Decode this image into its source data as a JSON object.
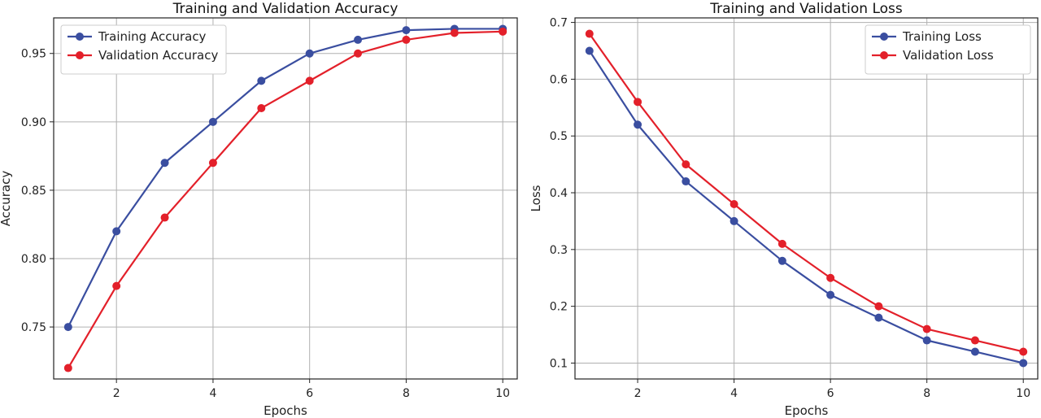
{
  "chart_data": [
    {
      "type": "line",
      "title": "Training and Validation Accuracy",
      "xlabel": "Epochs",
      "ylabel": "Accuracy",
      "x": [
        1,
        2,
        3,
        4,
        5,
        6,
        7,
        8,
        9,
        10
      ],
      "xlim": [
        0.7,
        10.3
      ],
      "ylim": [
        0.712,
        0.976
      ],
      "xticks": [
        2,
        4,
        6,
        8,
        10
      ],
      "yticks": [
        0.75,
        0.8,
        0.85,
        0.9,
        0.95
      ],
      "ytick_labels": [
        "0.75",
        "0.80",
        "0.85",
        "0.90",
        "0.95"
      ],
      "grid": true,
      "legend": "upper-left",
      "series": [
        {
          "name": "Training Accuracy",
          "color": "#3a4ea0",
          "values": [
            0.75,
            0.82,
            0.87,
            0.9,
            0.93,
            0.95,
            0.96,
            0.967,
            0.968,
            0.968
          ]
        },
        {
          "name": "Validation Accuracy",
          "color": "#e3202a",
          "values": [
            0.72,
            0.78,
            0.83,
            0.87,
            0.91,
            0.93,
            0.95,
            0.96,
            0.965,
            0.966
          ]
        }
      ]
    },
    {
      "type": "line",
      "title": "Training and Validation Loss",
      "xlabel": "Epochs",
      "ylabel": "Loss",
      "x": [
        1,
        2,
        3,
        4,
        5,
        6,
        7,
        8,
        9,
        10
      ],
      "xlim": [
        0.7,
        10.3
      ],
      "ylim": [
        0.072,
        0.708
      ],
      "xticks": [
        2,
        4,
        6,
        8,
        10
      ],
      "yticks": [
        0.1,
        0.2,
        0.3,
        0.4,
        0.5,
        0.6,
        0.7
      ],
      "ytick_labels": [
        "0.1",
        "0.2",
        "0.3",
        "0.4",
        "0.5",
        "0.6",
        "0.7"
      ],
      "grid": true,
      "legend": "upper-right",
      "series": [
        {
          "name": "Training Loss",
          "color": "#3a4ea0",
          "values": [
            0.65,
            0.52,
            0.42,
            0.35,
            0.28,
            0.22,
            0.18,
            0.14,
            0.12,
            0.1
          ]
        },
        {
          "name": "Validation Loss",
          "color": "#e3202a",
          "values": [
            0.68,
            0.56,
            0.45,
            0.38,
            0.31,
            0.25,
            0.2,
            0.16,
            0.14,
            0.12
          ]
        }
      ]
    }
  ]
}
